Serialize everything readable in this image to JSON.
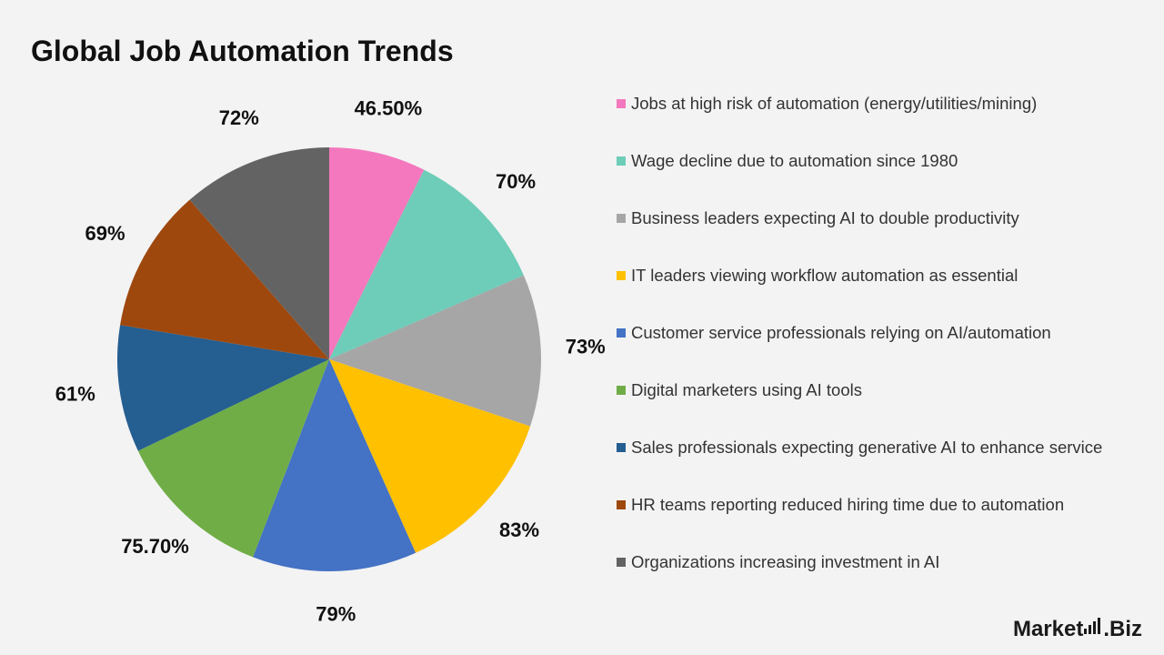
{
  "title": "Global Job Automation Trends",
  "brand": {
    "text_left": "Market",
    "text_right": ".Biz"
  },
  "chart_data": {
    "type": "pie",
    "title": "Global Job Automation Trends",
    "legend_position": "right",
    "categories": [
      "Jobs at high risk of automation (energy/utilities/mining)",
      "Wage decline due to automation since 1980",
      "Business leaders expecting AI to double productivity",
      "IT leaders viewing workflow automation as essential",
      "Customer service professionals relying on AI/automation",
      "Digital marketers using AI tools",
      "Sales professionals expecting generative AI to enhance service",
      "HR teams reporting reduced hiring time due to automation",
      "Organizations increasing investment in AI"
    ],
    "values": [
      46.5,
      70,
      73,
      83,
      79,
      75.7,
      61,
      69,
      72
    ],
    "labels": [
      "46.50%",
      "70%",
      "73%",
      "83%",
      "79%",
      "75.70%",
      "61%",
      "69%",
      "72%"
    ],
    "colors": [
      "#f478bd",
      "#6dcdb8",
      "#a6a6a6",
      "#ffc000",
      "#4472c4",
      "#70ad47",
      "#255e91",
      "#9e480e",
      "#636363"
    ]
  }
}
